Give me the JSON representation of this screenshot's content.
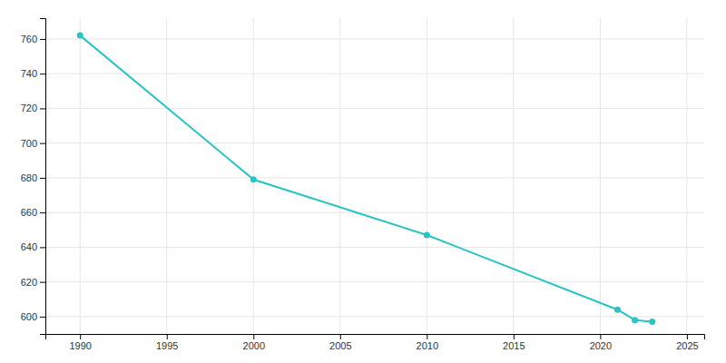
{
  "chart_data": {
    "type": "line",
    "x": [
      1990,
      2000,
      2010,
      2021,
      2022,
      2023
    ],
    "values": [
      762,
      679,
      647,
      604,
      598,
      597
    ],
    "color": "#2AC4C4",
    "marker": "circle",
    "xlim": [
      1988,
      2026
    ],
    "ylim": [
      590,
      772
    ],
    "xticks": [
      1990,
      1995,
      2000,
      2005,
      2010,
      2015,
      2020,
      2025
    ],
    "yticks": [
      600,
      620,
      640,
      660,
      680,
      700,
      720,
      740,
      760
    ],
    "grid": true
  }
}
